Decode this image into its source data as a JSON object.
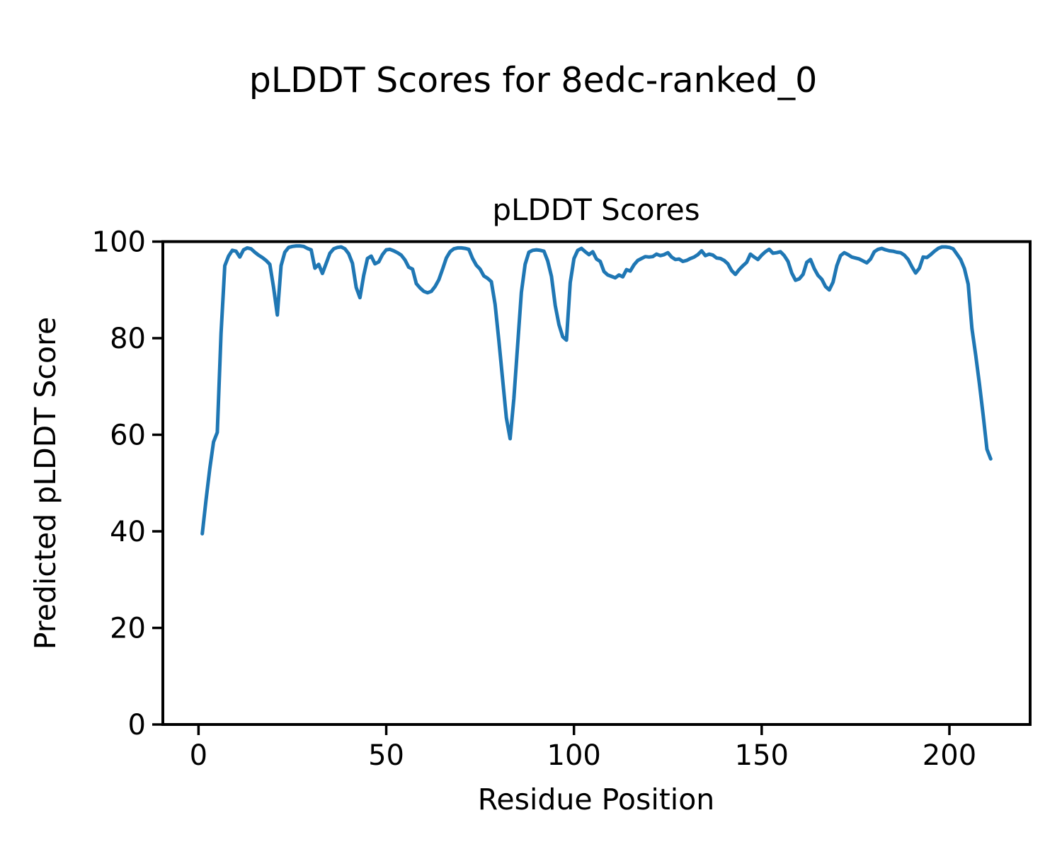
{
  "chart_data": {
    "type": "line",
    "suptitle": "pLDDT Scores for 8edc-ranked_0",
    "title": "pLDDT Scores",
    "xlabel": "Residue Position",
    "ylabel": "Predicted pLDDT Score",
    "xlim": [
      -9.5,
      221.5
    ],
    "ylim": [
      0,
      100
    ],
    "xticks": [
      0,
      50,
      100,
      150,
      200
    ],
    "yticks": [
      0,
      20,
      40,
      60,
      80,
      100
    ],
    "grid": false,
    "legend": "none",
    "line_color": "#1f77b4",
    "text_color": "#000000",
    "background_color": "#ffffff",
    "series": [
      {
        "name": "pLDDT",
        "x_start": 1,
        "x_step": 1,
        "values": [
          39.5,
          46.5,
          53,
          58.5,
          60.5,
          81,
          95,
          97,
          98.2,
          98,
          96.8,
          98.3,
          98.7,
          98.5,
          97.8,
          97.2,
          96.7,
          96.1,
          95.3,
          90.5,
          84.8,
          95,
          97.8,
          98.8,
          99,
          99.1,
          99.1,
          99,
          98.6,
          98.3,
          94.5,
          95.3,
          93.4,
          95.5,
          97.6,
          98.5,
          98.8,
          98.9,
          98.5,
          97.5,
          95.5,
          90.5,
          88.4,
          93,
          96.5,
          97,
          95.4,
          95.8,
          97.3,
          98.3,
          98.4,
          98.1,
          97.7,
          97.2,
          96.2,
          94.7,
          94.3,
          91.3,
          90.4,
          89.7,
          89.4,
          89.7,
          90.7,
          92.1,
          94.3,
          96.6,
          97.9,
          98.5,
          98.7,
          98.7,
          98.6,
          98.4,
          96.5,
          95.1,
          94.3,
          92.9,
          92.4,
          91.7,
          87,
          79.5,
          71.5,
          63.5,
          59.2,
          67.5,
          78.5,
          89.5,
          95.3,
          97.8,
          98.2,
          98.3,
          98.2,
          98,
          96,
          92.8,
          86.8,
          82.8,
          80.3,
          79.6,
          91.5,
          96.5,
          98.2,
          98.6,
          97.9,
          97.3,
          97.9,
          96.4,
          95.9,
          93.8,
          93.1,
          92.8,
          92.5,
          93.1,
          92.7,
          94.2,
          93.9,
          95.2,
          96.1,
          96.5,
          96.9,
          96.8,
          96.9,
          97.4,
          97.1,
          97.3,
          97.7,
          96.8,
          96.3,
          96.4,
          95.9,
          96.1,
          96.5,
          96.8,
          97.3,
          98.1,
          97.1,
          97.4,
          97.2,
          96.6,
          96.5,
          96.1,
          95.4,
          94,
          93.2,
          94.2,
          95,
          95.7,
          97.4,
          96.8,
          96.3,
          97.2,
          97.9,
          98.4,
          97.6,
          97.7,
          97.9,
          97.1,
          95.9,
          93.5,
          92,
          92.3,
          93.2,
          95.7,
          96.3,
          94.4,
          93,
          92.2,
          90.7,
          90,
          91.6,
          95,
          97.1,
          97.7,
          97.3,
          96.8,
          96.6,
          96.4,
          96,
          95.6,
          96.4,
          97.9,
          98.4,
          98.6,
          98.3,
          98.1,
          98,
          97.8,
          97.7,
          97.2,
          96.3,
          94.8,
          93.5,
          94.5,
          96.8,
          96.7,
          97.3,
          98,
          98.6,
          98.9,
          98.9,
          98.8,
          98.5,
          97.4,
          96.3,
          94.4,
          91.2,
          82,
          76.5,
          70.5,
          64,
          57,
          55
        ]
      }
    ]
  }
}
